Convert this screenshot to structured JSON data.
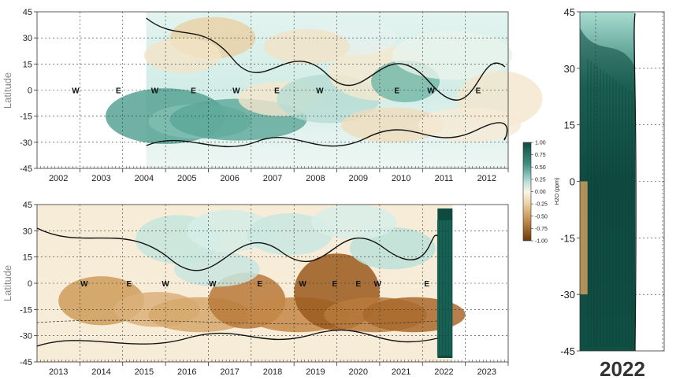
{
  "chart_data": [
    {
      "type": "heatmap",
      "panel": "top",
      "ylabel": "Latitude",
      "y_ticks": [
        45,
        30,
        15,
        0,
        -15,
        -30,
        -45
      ],
      "ylim": [
        -45,
        45
      ],
      "x_ticks": [
        "2002",
        "2003",
        "2004",
        "2005",
        "2006",
        "2007",
        "2008",
        "2009",
        "2010",
        "2011",
        "2012"
      ],
      "data_start_year": 2004,
      "qbo_labels": [
        {
          "year": 2002.4,
          "text": "W"
        },
        {
          "year": 2003.4,
          "text": "E"
        },
        {
          "year": 2004.25,
          "text": "W"
        },
        {
          "year": 2005.15,
          "text": "E"
        },
        {
          "year": 2006.15,
          "text": "W"
        },
        {
          "year": 2007.1,
          "text": "E"
        },
        {
          "year": 2008.1,
          "text": "W"
        },
        {
          "year": 2009.9,
          "text": "E"
        },
        {
          "year": 2010.7,
          "text": "W"
        },
        {
          "year": 2011.8,
          "text": "E"
        }
      ]
    },
    {
      "type": "heatmap",
      "panel": "bottom",
      "ylabel": "Latitude",
      "y_ticks": [
        45,
        30,
        15,
        0,
        -15,
        -30,
        -45
      ],
      "ylim": [
        -45,
        45
      ],
      "x_ticks": [
        "2013",
        "2014",
        "2015",
        "2016",
        "2017",
        "2018",
        "2019",
        "2020",
        "2021",
        "2022",
        "2023"
      ],
      "data_end_year": 2022.2,
      "qbo_labels": [
        {
          "year": 2013.6,
          "text": "W"
        },
        {
          "year": 2014.65,
          "text": "E"
        },
        {
          "year": 2015.5,
          "text": "W"
        },
        {
          "year": 2016.6,
          "text": "W"
        },
        {
          "year": 2017.7,
          "text": "E"
        },
        {
          "year": 2018.7,
          "text": "W"
        },
        {
          "year": 2019.45,
          "text": "E"
        },
        {
          "year": 2020.0,
          "text": "E"
        },
        {
          "year": 2020.45,
          "text": "W"
        },
        {
          "year": 2021.6,
          "text": "E"
        }
      ]
    },
    {
      "type": "heatmap",
      "panel": "inset",
      "y_ticks": [
        45,
        30,
        15,
        0,
        -15,
        -30,
        -45
      ],
      "ylim": [
        -45,
        45
      ],
      "x_label": "2022"
    }
  ],
  "colorbar": {
    "label": "H2O (ppm)",
    "ticks": [
      "1.00",
      "0.75",
      "0.50",
      "0.25",
      "0.00",
      "-0.25",
      "-0.50",
      "-0.75",
      "-1.00"
    ],
    "colors": {
      "pos": "#0f4a40",
      "mid": "#cdeae4",
      "zero": "#fbf4e6",
      "neg_mid": "#e6c89a",
      "neg": "#7a4410"
    }
  }
}
